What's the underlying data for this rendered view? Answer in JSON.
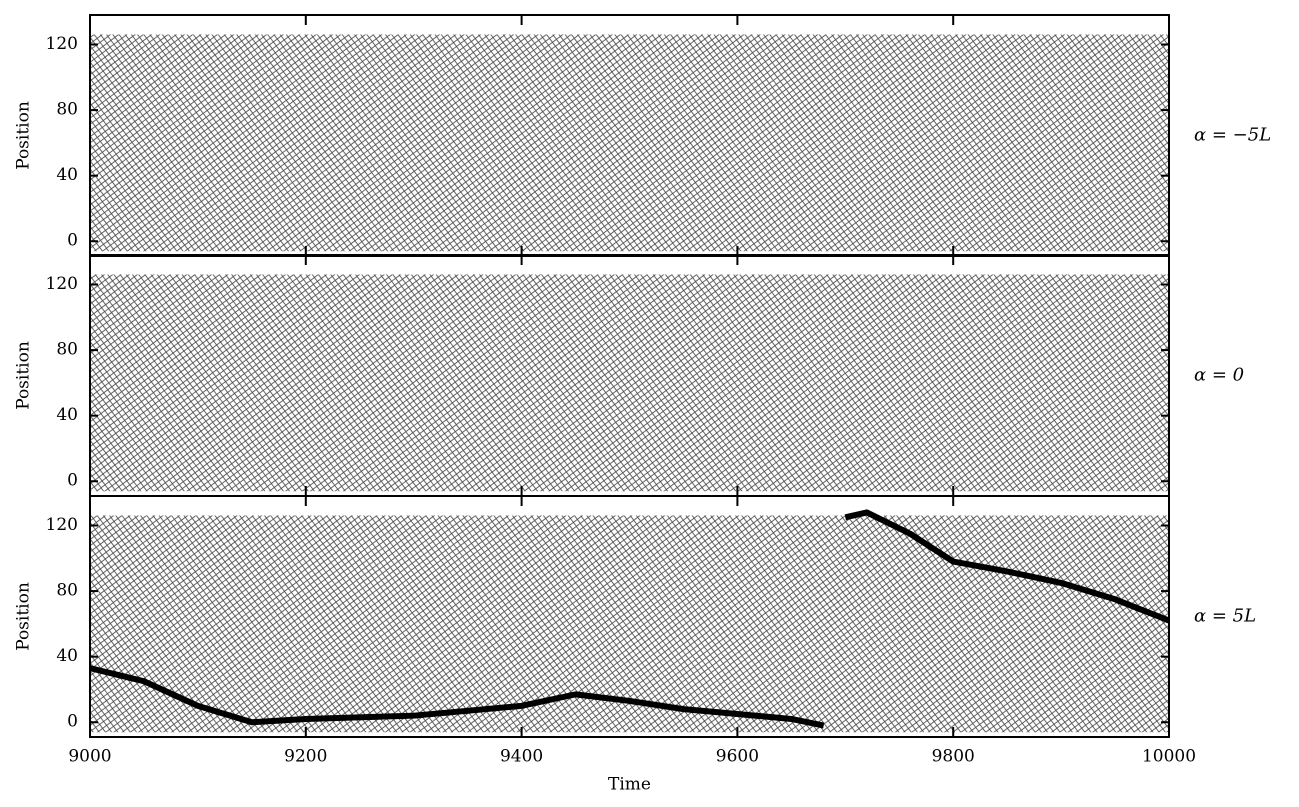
{
  "chart_data": [
    {
      "type": "line",
      "ylabel": "Position",
      "annotation": "α = −5L",
      "xlim": [
        9000,
        10000
      ],
      "xticks": [
        9000,
        9200,
        9400,
        9600,
        9800,
        10000
      ],
      "ylim": [
        -9,
        138
      ],
      "yticks": [
        0,
        40,
        80,
        120
      ],
      "color": "#000000",
      "series": []
    },
    {
      "type": "line",
      "ylabel": "Position",
      "annotation": "α = 0",
      "xlim": [
        9000,
        10000
      ],
      "xticks": [
        9000,
        9200,
        9400,
        9600,
        9800,
        10000
      ],
      "ylim": [
        -9,
        138
      ],
      "yticks": [
        0,
        40,
        80,
        120
      ],
      "color": "#000000",
      "series": []
    },
    {
      "type": "line",
      "ylabel": "Position",
      "xlabel": "Time",
      "annotation": "α = 5L",
      "xlim": [
        9000,
        10000
      ],
      "xticks": [
        9000,
        9200,
        9400,
        9600,
        9800,
        10000
      ],
      "ylim": [
        -9,
        138
      ],
      "yticks": [
        0,
        40,
        80,
        120
      ],
      "color": "#000000",
      "series": [
        {
          "color": "#000000",
          "x": [
            9000,
            9050,
            9100,
            9150,
            9200,
            9300,
            9400,
            9450,
            9500,
            9550,
            9600,
            9650,
            9680,
            9690,
            9700,
            9720,
            9760,
            9800,
            9850,
            9900,
            9950,
            10000
          ],
          "values": [
            33,
            25,
            10,
            0,
            2,
            4,
            10,
            17,
            13,
            8,
            5,
            2,
            -2,
            null,
            125,
            128,
            115,
            98,
            92,
            85,
            75,
            62
          ]
        }
      ]
    }
  ]
}
